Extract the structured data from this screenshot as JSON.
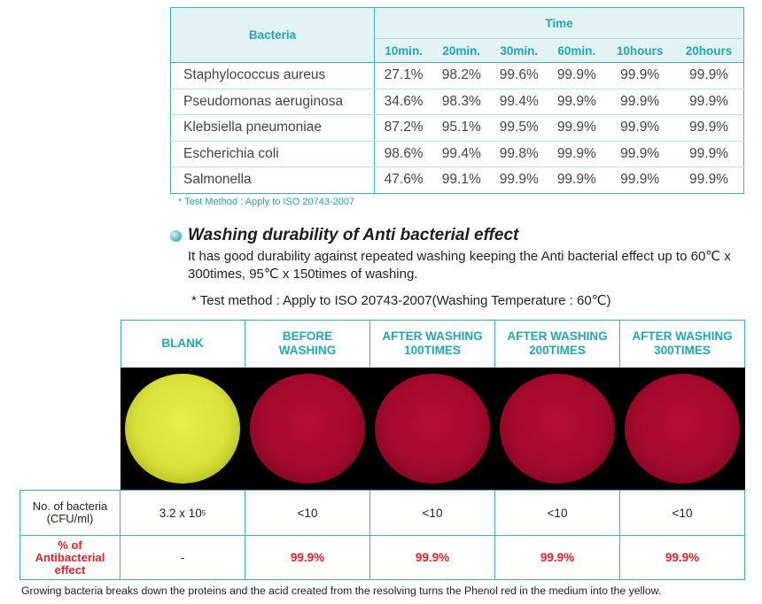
{
  "time_table": {
    "bacteria_header": "Bacteria",
    "time_header": "Time",
    "time_columns": [
      "10min.",
      "20min.",
      "30min.",
      "60min.",
      "10hours",
      "20hours"
    ],
    "rows": [
      {
        "name": "Staphylococcus aureus",
        "values": [
          "27.1%",
          "98.2%",
          "99.6%",
          "99.9%",
          "99.9%",
          "99.9%"
        ]
      },
      {
        "name": "Pseudomonas aeruginosa",
        "values": [
          "34.6%",
          "98.3%",
          "99.4%",
          "99.9%",
          "99.9%",
          "99.9%"
        ]
      },
      {
        "name": "Klebsiella pneumoniae",
        "values": [
          "87.2%",
          "95.1%",
          "99.5%",
          "99.9%",
          "99.9%",
          "99.9%"
        ]
      },
      {
        "name": "Escherichia coli",
        "values": [
          "98.6%",
          "99.4%",
          "99.8%",
          "99.9%",
          "99.9%",
          "99.9%"
        ]
      },
      {
        "name": "Salmonella",
        "values": [
          "47.6%",
          "99.1%",
          "99.9%",
          "99.9%",
          "99.9%",
          "99.9%"
        ]
      }
    ],
    "note": "* Test Method : Apply to ISO 20743-2007"
  },
  "washing": {
    "title": "Washing durability of Anti bacterial effect",
    "description": "It has good durability against repeated washing keeping the Anti bacterial effect  up to 60℃ x 300times, 95℃ x 150times of washing.",
    "method_note": "* Test method : Apply to ISO 20743-2007(Washing Temperature : 60℃)",
    "columns": [
      {
        "line1": "BLANK",
        "line2": "",
        "dish": "yellow",
        "bacteria": "3.2 x 10",
        "bacteria_exp": "5",
        "percent": "-"
      },
      {
        "line1": "BEFORE",
        "line2": "WASHING",
        "dish": "red",
        "bacteria": "<10",
        "bacteria_exp": "",
        "percent": "99.9%"
      },
      {
        "line1": "AFTER WASHING",
        "line2": "100TIMES",
        "dish": "red",
        "bacteria": "<10",
        "bacteria_exp": "",
        "percent": "99.9%"
      },
      {
        "line1": "AFTER WASHING",
        "line2": "200TIMES",
        "dish": "red",
        "bacteria": "<10",
        "bacteria_exp": "",
        "percent": "99.9%"
      },
      {
        "line1": "AFTER WASHING",
        "line2": "300TIMES",
        "dish": "red",
        "bacteria": "<10",
        "bacteria_exp": "",
        "percent": "99.9%"
      }
    ],
    "row_bacteria_label_1": "No. of bacteria",
    "row_bacteria_label_2": "(CFU/ml)",
    "row_percent_label_1": "% of",
    "row_percent_label_2": "Antibacterial",
    "row_percent_label_3": "effect",
    "colors": {
      "accent": "#21a7b0",
      "highlight": "#e2232a",
      "dish_blank": "#d8e13a",
      "dish_red": "#a3092b"
    }
  },
  "footer": "Growing bacteria breaks down the proteins and the acid created from the resolving turns the Phenol red in the medium into the yellow."
}
